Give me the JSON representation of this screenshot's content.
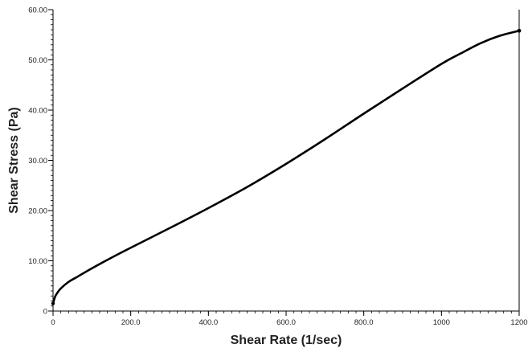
{
  "chart_data": {
    "type": "line",
    "title": "",
    "xlabel": "Shear Rate (1/sec)",
    "ylabel": "Shear Stress (Pa)",
    "xlim": [
      0,
      1200
    ],
    "ylim": [
      0,
      60
    ],
    "x_ticks": [
      0,
      200,
      400,
      600,
      800,
      1000,
      1200
    ],
    "x_tick_labels": [
      "0",
      "200.0",
      "400.0",
      "600.0",
      "800.0",
      "1000",
      "1200"
    ],
    "y_ticks": [
      0,
      10,
      20,
      30,
      40,
      50,
      60
    ],
    "y_tick_labels": [
      "0",
      "10.00",
      "20.00",
      "30.00",
      "40.00",
      "50.00",
      "60.00"
    ],
    "grid": false,
    "legend": "none",
    "series": [
      {
        "color": "#000000",
        "x": [
          0,
          5,
          10,
          20,
          40,
          60,
          100,
          150,
          200,
          300,
          400,
          500,
          600,
          700,
          800,
          900,
          1000,
          1050,
          1100,
          1150,
          1200
        ],
        "y": [
          1.5,
          2.8,
          3.5,
          4.5,
          5.8,
          6.7,
          8.5,
          10.6,
          12.6,
          16.5,
          20.5,
          24.7,
          29.3,
          34.2,
          39.3,
          44.3,
          49.2,
          51.3,
          53.3,
          54.8,
          55.8
        ]
      }
    ]
  }
}
